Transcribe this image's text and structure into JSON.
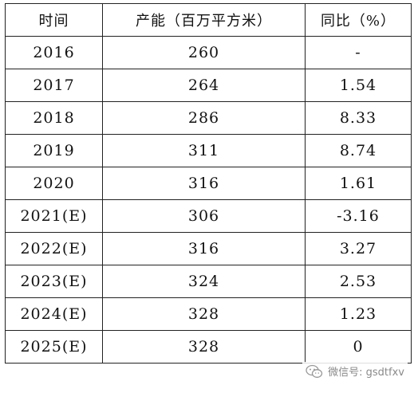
{
  "table": {
    "headers": [
      "时间",
      "产能（百万平方米）",
      "同比（%）"
    ],
    "rows": [
      [
        "2016",
        "260",
        "-"
      ],
      [
        "2017",
        "264",
        "1.54"
      ],
      [
        "2018",
        "286",
        "8.33"
      ],
      [
        "2019",
        "311",
        "8.74"
      ],
      [
        "2020",
        "316",
        "1.61"
      ],
      [
        "2021(E)",
        "306",
        "-3.16"
      ],
      [
        "2022(E)",
        "316",
        "3.27"
      ],
      [
        "2023(E)",
        "324",
        "2.53"
      ],
      [
        "2024(E)",
        "328",
        "1.23"
      ],
      [
        "2025(E)",
        "328",
        "0"
      ]
    ]
  },
  "watermark": {
    "text": "微信号: gsdtfxv",
    "icon": "wechat-icon",
    "color": "#8a8a8a"
  }
}
